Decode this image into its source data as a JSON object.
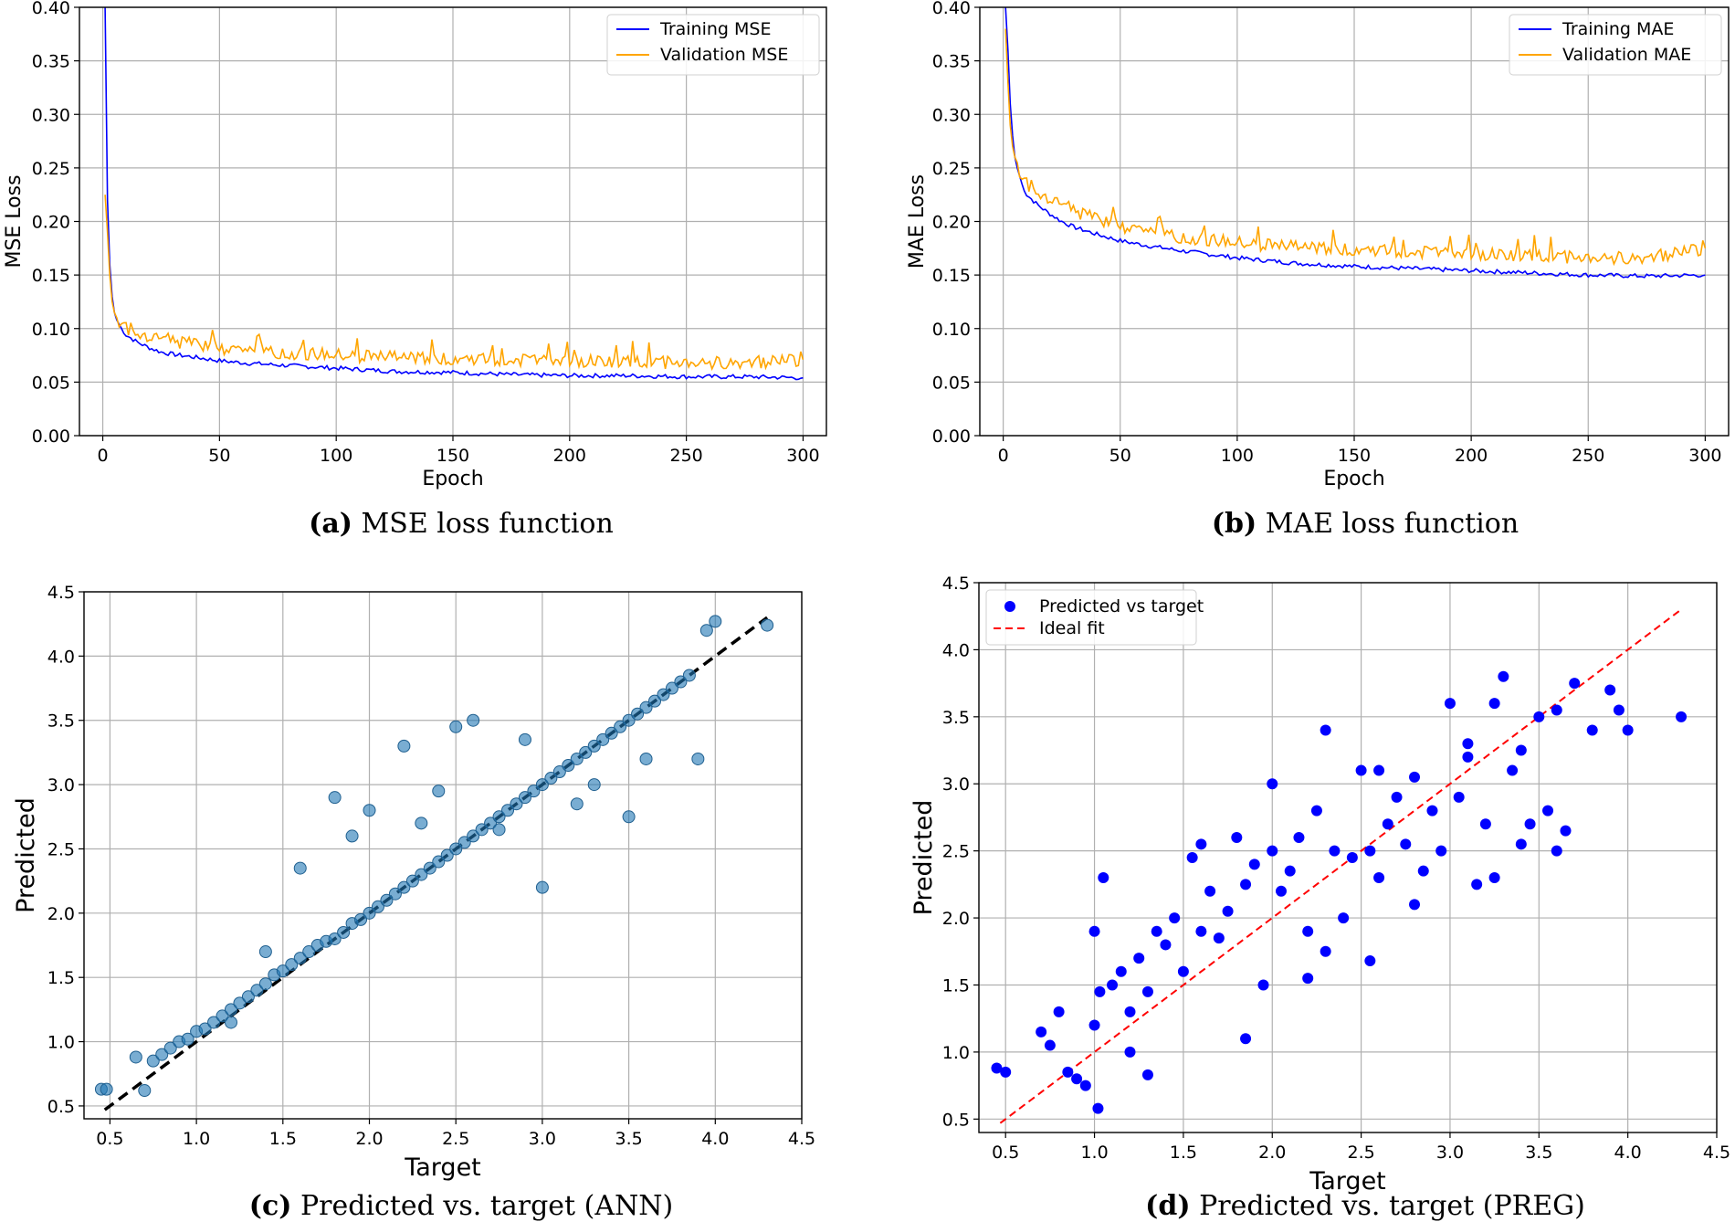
{
  "figure": {
    "captions": [
      {
        "label": "(a)",
        "text": "MSE loss function"
      },
      {
        "label": "(b)",
        "text": "MAE loss function"
      },
      {
        "label": "(c)",
        "text": "Predicted vs. target (ANN)"
      },
      {
        "label": "(d)",
        "text": "Predicted vs. target (PREG)"
      }
    ]
  },
  "chart_data": [
    {
      "id": "a",
      "type": "line",
      "title": "",
      "xlabel": "Epoch",
      "ylabel": "MSE Loss",
      "xlim": [
        -10,
        310
      ],
      "ylim": [
        0.0,
        0.4
      ],
      "xticks": [
        0,
        50,
        100,
        150,
        200,
        250,
        300
      ],
      "yticks": [
        0.0,
        0.05,
        0.1,
        0.15,
        0.2,
        0.25,
        0.3,
        0.35,
        0.4
      ],
      "ytick_labels": [
        "0.00",
        "0.05",
        "0.10",
        "0.15",
        "0.20",
        "0.25",
        "0.30",
        "0.35",
        "0.40"
      ],
      "xtick_labels": [
        "0",
        "50",
        "100",
        "150",
        "200",
        "250",
        "300"
      ],
      "grid": true,
      "legend": "top-right",
      "series": [
        {
          "name": "Training MSE",
          "color": "#0000ff",
          "x": [
            1,
            2,
            3,
            4,
            5,
            6,
            8,
            10,
            15,
            20,
            25,
            30,
            40,
            50,
            60,
            75,
            100,
            125,
            150,
            175,
            200,
            225,
            250,
            275,
            300
          ],
          "values": [
            0.4,
            0.22,
            0.16,
            0.13,
            0.115,
            0.108,
            0.1,
            0.094,
            0.087,
            0.082,
            0.078,
            0.076,
            0.073,
            0.07,
            0.068,
            0.066,
            0.063,
            0.06,
            0.059,
            0.057,
            0.056,
            0.056,
            0.055,
            0.055,
            0.054
          ]
        },
        {
          "name": "Validation MSE",
          "color": "#ffa500",
          "x": [
            1,
            2,
            3,
            4,
            5,
            6,
            8,
            10,
            15,
            20,
            25,
            30,
            40,
            50,
            60,
            75,
            100,
            125,
            150,
            175,
            200,
            225,
            250,
            275,
            300
          ],
          "values": [
            0.225,
            0.19,
            0.15,
            0.125,
            0.115,
            0.11,
            0.105,
            0.1,
            0.097,
            0.093,
            0.09,
            0.088,
            0.085,
            0.082,
            0.08,
            0.078,
            0.075,
            0.073,
            0.072,
            0.071,
            0.07,
            0.069,
            0.068,
            0.068,
            0.071
          ]
        }
      ]
    },
    {
      "id": "b",
      "type": "line",
      "title": "",
      "xlabel": "Epoch",
      "ylabel": "MAE Loss",
      "xlim": [
        -10,
        310
      ],
      "ylim": [
        0.0,
        0.4
      ],
      "xticks": [
        0,
        50,
        100,
        150,
        200,
        250,
        300
      ],
      "yticks": [
        0.0,
        0.05,
        0.1,
        0.15,
        0.2,
        0.25,
        0.3,
        0.35,
        0.4
      ],
      "ytick_labels": [
        "0.00",
        "0.05",
        "0.10",
        "0.15",
        "0.20",
        "0.25",
        "0.30",
        "0.35",
        "0.40"
      ],
      "xtick_labels": [
        "0",
        "50",
        "100",
        "150",
        "200",
        "250",
        "300"
      ],
      "grid": true,
      "legend": "top-right",
      "series": [
        {
          "name": "Training MAE",
          "color": "#0000ff",
          "x": [
            1,
            2,
            3,
            4,
            5,
            6,
            8,
            10,
            15,
            20,
            25,
            30,
            40,
            50,
            60,
            75,
            100,
            125,
            150,
            175,
            200,
            225,
            250,
            275,
            300
          ],
          "values": [
            0.4,
            0.36,
            0.31,
            0.28,
            0.26,
            0.25,
            0.235,
            0.225,
            0.215,
            0.207,
            0.2,
            0.195,
            0.188,
            0.182,
            0.178,
            0.173,
            0.166,
            0.161,
            0.158,
            0.156,
            0.154,
            0.152,
            0.15,
            0.149,
            0.15
          ]
        },
        {
          "name": "Validation MAE",
          "color": "#ffa500",
          "x": [
            1,
            2,
            3,
            4,
            5,
            6,
            8,
            10,
            15,
            20,
            25,
            30,
            40,
            50,
            60,
            75,
            100,
            125,
            150,
            175,
            200,
            225,
            250,
            275,
            300
          ],
          "values": [
            0.38,
            0.33,
            0.29,
            0.27,
            0.26,
            0.255,
            0.24,
            0.235,
            0.228,
            0.222,
            0.215,
            0.21,
            0.202,
            0.196,
            0.192,
            0.186,
            0.18,
            0.176,
            0.174,
            0.172,
            0.17,
            0.168,
            0.166,
            0.166,
            0.175
          ]
        }
      ]
    },
    {
      "id": "c",
      "type": "scatter",
      "title": "",
      "xlabel": "Target",
      "ylabel": "Predicted",
      "xlim": [
        0.35,
        4.5
      ],
      "ylim": [
        0.4,
        4.5
      ],
      "xticks": [
        0.5,
        1.0,
        1.5,
        2.0,
        2.5,
        3.0,
        3.5,
        4.0,
        4.5
      ],
      "yticks": [
        0.5,
        1.0,
        1.5,
        2.0,
        2.5,
        3.0,
        3.5,
        4.0,
        4.5
      ],
      "xtick_labels": [
        "0.5",
        "1.0",
        "1.5",
        "2.0",
        "2.5",
        "3.0",
        "3.5",
        "4.0",
        "4.5"
      ],
      "ytick_labels": [
        "0.5",
        "1.0",
        "1.5",
        "2.0",
        "2.5",
        "3.0",
        "3.5",
        "4.0",
        "4.5"
      ],
      "grid": true,
      "point_color": "#1f77b4",
      "ideal_line": {
        "x": [
          0.47,
          4.3
        ],
        "y": [
          0.47,
          4.3
        ],
        "style": "dashed",
        "color": "#000000"
      },
      "points_x": [
        0.45,
        0.48,
        0.65,
        0.7,
        0.75,
        0.8,
        0.85,
        0.9,
        0.95,
        1.0,
        1.05,
        1.1,
        1.15,
        1.2,
        1.25,
        1.3,
        1.35,
        1.4,
        1.45,
        1.5,
        1.55,
        1.6,
        1.65,
        1.7,
        1.75,
        1.8,
        1.85,
        1.9,
        1.95,
        2.0,
        2.05,
        2.1,
        2.15,
        2.2,
        2.25,
        2.3,
        2.35,
        2.4,
        2.45,
        2.5,
        2.55,
        2.6,
        2.65,
        2.7,
        2.75,
        2.8,
        2.85,
        2.9,
        2.95,
        3.0,
        3.05,
        3.1,
        3.15,
        3.2,
        3.25,
        3.3,
        3.35,
        3.4,
        3.45,
        3.5,
        3.55,
        3.6,
        3.65,
        3.7,
        3.75,
        3.8,
        3.85,
        3.9,
        3.95,
        4.0,
        4.3,
        1.8,
        1.9,
        2.2,
        2.5,
        3.0,
        3.3,
        1.6,
        2.3,
        2.75,
        3.5,
        1.4,
        2.0,
        2.9,
        3.2,
        3.6,
        1.2,
        2.4,
        2.6
      ],
      "points_y": [
        0.63,
        0.63,
        0.88,
        0.62,
        0.85,
        0.9,
        0.95,
        1.0,
        1.02,
        1.08,
        1.1,
        1.15,
        1.2,
        1.25,
        1.3,
        1.35,
        1.4,
        1.45,
        1.52,
        1.55,
        1.6,
        1.65,
        1.7,
        1.75,
        1.78,
        1.8,
        1.85,
        1.92,
        1.95,
        2.0,
        2.05,
        2.1,
        2.15,
        2.2,
        2.25,
        2.3,
        2.35,
        2.4,
        2.45,
        2.5,
        2.55,
        2.6,
        2.65,
        2.7,
        2.75,
        2.8,
        2.85,
        2.9,
        2.95,
        3.0,
        3.05,
        3.1,
        3.15,
        3.2,
        3.25,
        3.3,
        3.35,
        3.4,
        3.45,
        3.5,
        3.55,
        3.6,
        3.65,
        3.7,
        3.75,
        3.8,
        3.85,
        3.2,
        4.2,
        4.27,
        4.24,
        2.9,
        2.6,
        3.3,
        3.45,
        2.2,
        3.0,
        2.35,
        2.7,
        2.65,
        2.75,
        1.7,
        2.8,
        3.35,
        2.85,
        3.2,
        1.15,
        2.95,
        3.5
      ]
    },
    {
      "id": "d",
      "type": "scatter",
      "title": "",
      "xlabel": "Target",
      "ylabel": "Predicted",
      "xlim": [
        0.35,
        4.5
      ],
      "ylim": [
        0.4,
        4.5
      ],
      "xticks": [
        0.5,
        1.0,
        1.5,
        2.0,
        2.5,
        3.0,
        3.5,
        4.0,
        4.5
      ],
      "yticks": [
        0.5,
        1.0,
        1.5,
        2.0,
        2.5,
        3.0,
        3.5,
        4.0,
        4.5
      ],
      "xtick_labels": [
        "0.5",
        "1.0",
        "1.5",
        "2.0",
        "2.5",
        "3.0",
        "3.5",
        "4.0",
        "4.5"
      ],
      "ytick_labels": [
        "0.5",
        "1.0",
        "1.5",
        "2.0",
        "2.5",
        "3.0",
        "3.5",
        "4.0",
        "4.5"
      ],
      "grid": true,
      "legend": "top-left",
      "legend_entries": [
        "Predicted vs target",
        "Ideal fit"
      ],
      "point_color": "#0000ff",
      "ideal_line": {
        "x": [
          0.47,
          4.3
        ],
        "y": [
          0.47,
          4.3
        ],
        "style": "dashed",
        "color": "#ff0000"
      },
      "points_x": [
        0.45,
        0.5,
        0.7,
        0.75,
        0.8,
        0.85,
        0.9,
        0.95,
        1.0,
        1.02,
        1.05,
        1.1,
        1.15,
        1.2,
        1.25,
        1.3,
        1.35,
        1.4,
        1.45,
        1.5,
        1.55,
        1.6,
        1.65,
        1.7,
        1.75,
        1.8,
        1.85,
        1.9,
        1.95,
        2.0,
        2.05,
        2.1,
        2.15,
        2.2,
        2.25,
        2.3,
        2.35,
        2.4,
        2.45,
        2.5,
        2.55,
        2.6,
        2.65,
        2.7,
        2.75,
        2.8,
        2.85,
        2.9,
        2.95,
        3.0,
        3.05,
        3.1,
        3.15,
        3.2,
        3.25,
        3.3,
        3.35,
        3.4,
        3.45,
        3.5,
        3.55,
        3.6,
        3.65,
        3.7,
        3.8,
        3.9,
        3.95,
        4.0,
        4.3,
        1.03,
        1.2,
        1.85,
        2.2,
        2.55,
        1.0,
        1.6,
        2.3,
        2.8,
        3.1,
        3.4,
        1.3,
        2.0,
        2.6,
        3.25,
        3.6
      ],
      "points_y": [
        0.88,
        0.85,
        1.15,
        1.05,
        1.3,
        0.85,
        0.8,
        0.75,
        1.2,
        0.58,
        2.3,
        1.5,
        1.6,
        1.3,
        1.7,
        1.45,
        1.9,
        1.8,
        2.0,
        1.6,
        2.45,
        1.9,
        2.2,
        1.85,
        2.05,
        2.6,
        2.25,
        2.4,
        1.5,
        2.5,
        2.2,
        2.35,
        2.6,
        1.9,
        2.8,
        3.4,
        2.5,
        2.0,
        2.45,
        3.1,
        2.5,
        2.3,
        2.7,
        2.9,
        2.55,
        3.05,
        2.35,
        2.8,
        2.5,
        3.6,
        2.9,
        3.2,
        2.25,
        2.7,
        3.6,
        3.8,
        3.1,
        2.55,
        2.7,
        3.5,
        2.8,
        3.55,
        2.65,
        3.75,
        3.4,
        3.7,
        3.55,
        3.4,
        3.5,
        1.45,
        1.0,
        1.1,
        1.55,
        1.68,
        1.9,
        2.55,
        1.75,
        2.1,
        3.3,
        3.25,
        0.83,
        3.0,
        3.1,
        2.3,
        2.5
      ]
    }
  ]
}
